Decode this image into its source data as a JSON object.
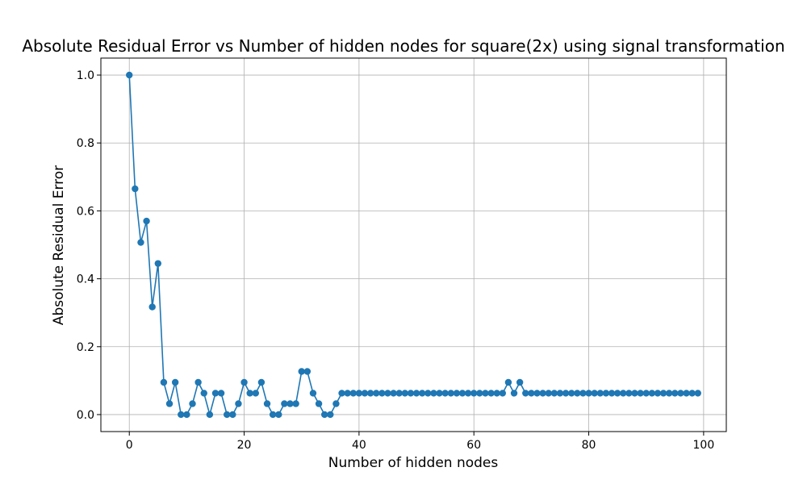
{
  "chart_data": {
    "type": "line",
    "title": "Absolute Residual Error vs Number of hidden nodes for square(2x) using signal transformation",
    "xlabel": "Number of hidden nodes",
    "ylabel": "Absolute Residual Error",
    "xlim": [
      -4.95,
      103.95
    ],
    "ylim": [
      -0.05,
      1.05
    ],
    "xticks": [
      0,
      20,
      40,
      60,
      80,
      100
    ],
    "xtick_labels": [
      "0",
      "20",
      "40",
      "60",
      "80",
      "100"
    ],
    "yticks": [
      0.0,
      0.2,
      0.4,
      0.6,
      0.8,
      1.0
    ],
    "ytick_labels": [
      "0.0",
      "0.2",
      "0.4",
      "0.6",
      "0.8",
      "1.0"
    ],
    "grid": true,
    "line_color": "#1f77b4",
    "marker": "circle",
    "series": [
      {
        "x": [
          0,
          1,
          2,
          3,
          4,
          5,
          6,
          7,
          8,
          9,
          10,
          11,
          12,
          13,
          14,
          15,
          16,
          17,
          18,
          19,
          20,
          21,
          22,
          23,
          24,
          25,
          26,
          27,
          28,
          29,
          30,
          31,
          32,
          33,
          34,
          35,
          36,
          37,
          38,
          39,
          40,
          41,
          42,
          43,
          44,
          45,
          46,
          47,
          48,
          49,
          50,
          51,
          52,
          53,
          54,
          55,
          56,
          57,
          58,
          59,
          60,
          61,
          62,
          63,
          64,
          65,
          66,
          67,
          68,
          69,
          70,
          71,
          72,
          73,
          74,
          75,
          76,
          77,
          78,
          79,
          80,
          81,
          82,
          83,
          84,
          85,
          86,
          87,
          88,
          89,
          90,
          91,
          92,
          93,
          94,
          95,
          96,
          97,
          98,
          99
        ],
        "values": [
          1.0,
          0.665,
          0.507,
          0.57,
          0.317,
          0.445,
          0.095,
          0.032,
          0.095,
          0.0,
          0.0,
          0.032,
          0.095,
          0.063,
          0.0,
          0.063,
          0.063,
          0.0,
          0.0,
          0.032,
          0.095,
          0.063,
          0.063,
          0.095,
          0.032,
          0.0,
          0.0,
          0.032,
          0.032,
          0.032,
          0.127,
          0.127,
          0.063,
          0.032,
          0.0,
          0.0,
          0.032,
          0.063,
          0.063,
          0.063,
          0.063,
          0.063,
          0.063,
          0.063,
          0.063,
          0.063,
          0.063,
          0.063,
          0.063,
          0.063,
          0.063,
          0.063,
          0.063,
          0.063,
          0.063,
          0.063,
          0.063,
          0.063,
          0.063,
          0.063,
          0.063,
          0.063,
          0.063,
          0.063,
          0.063,
          0.063,
          0.095,
          0.063,
          0.095,
          0.063,
          0.063,
          0.063,
          0.063,
          0.063,
          0.063,
          0.063,
          0.063,
          0.063,
          0.063,
          0.063,
          0.063,
          0.063,
          0.063,
          0.063,
          0.063,
          0.063,
          0.063,
          0.063,
          0.063,
          0.063,
          0.063,
          0.063,
          0.063,
          0.063,
          0.063,
          0.063,
          0.063,
          0.063,
          0.063,
          0.063
        ]
      }
    ]
  }
}
